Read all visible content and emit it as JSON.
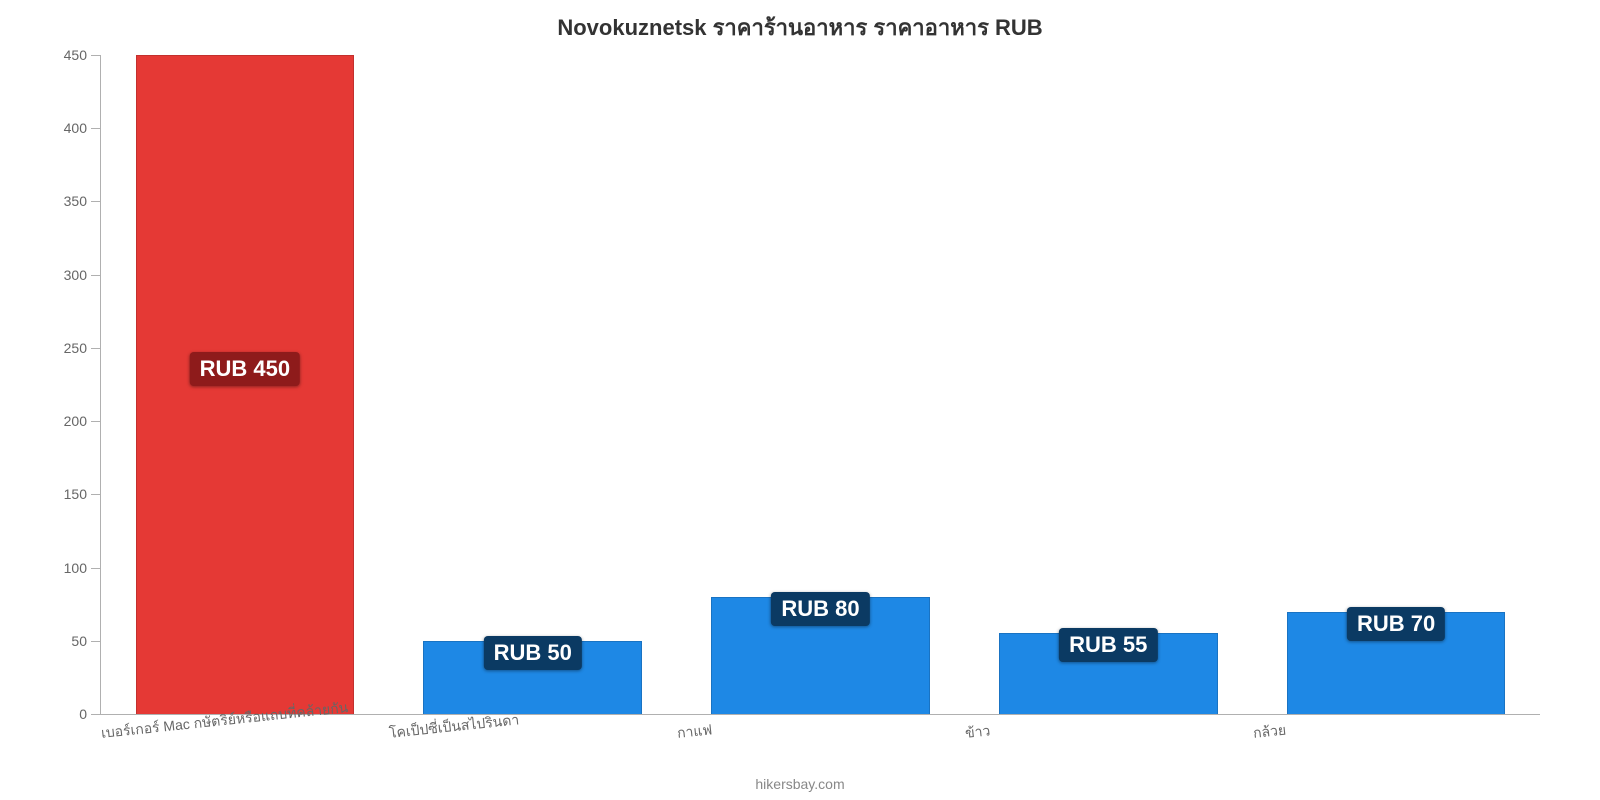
{
  "chart": {
    "type": "bar",
    "title": "Novokuznetsk ราคาร้านอาหาร ราคาอาหาร RUB",
    "title_fontsize": 22,
    "title_color": "#333333",
    "background_color": "#ffffff",
    "axis_color": "#b0b0b0",
    "ylim": [
      0,
      450
    ],
    "ytick_step": 50,
    "y_label_fontsize": 14,
    "y_label_color": "#666666",
    "x_label_fontsize": 14,
    "x_label_color": "#666666",
    "x_label_rotation_deg": -6,
    "bar_width": 0.76,
    "badge_fontsize": 22,
    "badge_text_color": "#ffffff",
    "categories": [
      "เบอร์เกอร์ Mac กษัตริย์หรือแถบที่คล้ายกัน",
      "โคเป็ปซี่เป็นสไปรินดา",
      "กาแฟ",
      "ข้าว",
      "กล้วย"
    ],
    "values": [
      450,
      50,
      80,
      55,
      70
    ],
    "value_labels": [
      "RUB 450",
      "RUB 50",
      "RUB 80",
      "RUB 55",
      "RUB 70"
    ],
    "bar_colors": [
      "#e53935",
      "#1e88e5",
      "#1e88e5",
      "#1e88e5",
      "#1e88e5"
    ],
    "badge_colors": [
      "#8e1b1b",
      "#0b3a63",
      "#0b3a63",
      "#0b3a63",
      "#0b3a63"
    ],
    "attribution": "hikersbay.com",
    "attribution_fontsize": 14,
    "attribution_color": "#888888"
  }
}
